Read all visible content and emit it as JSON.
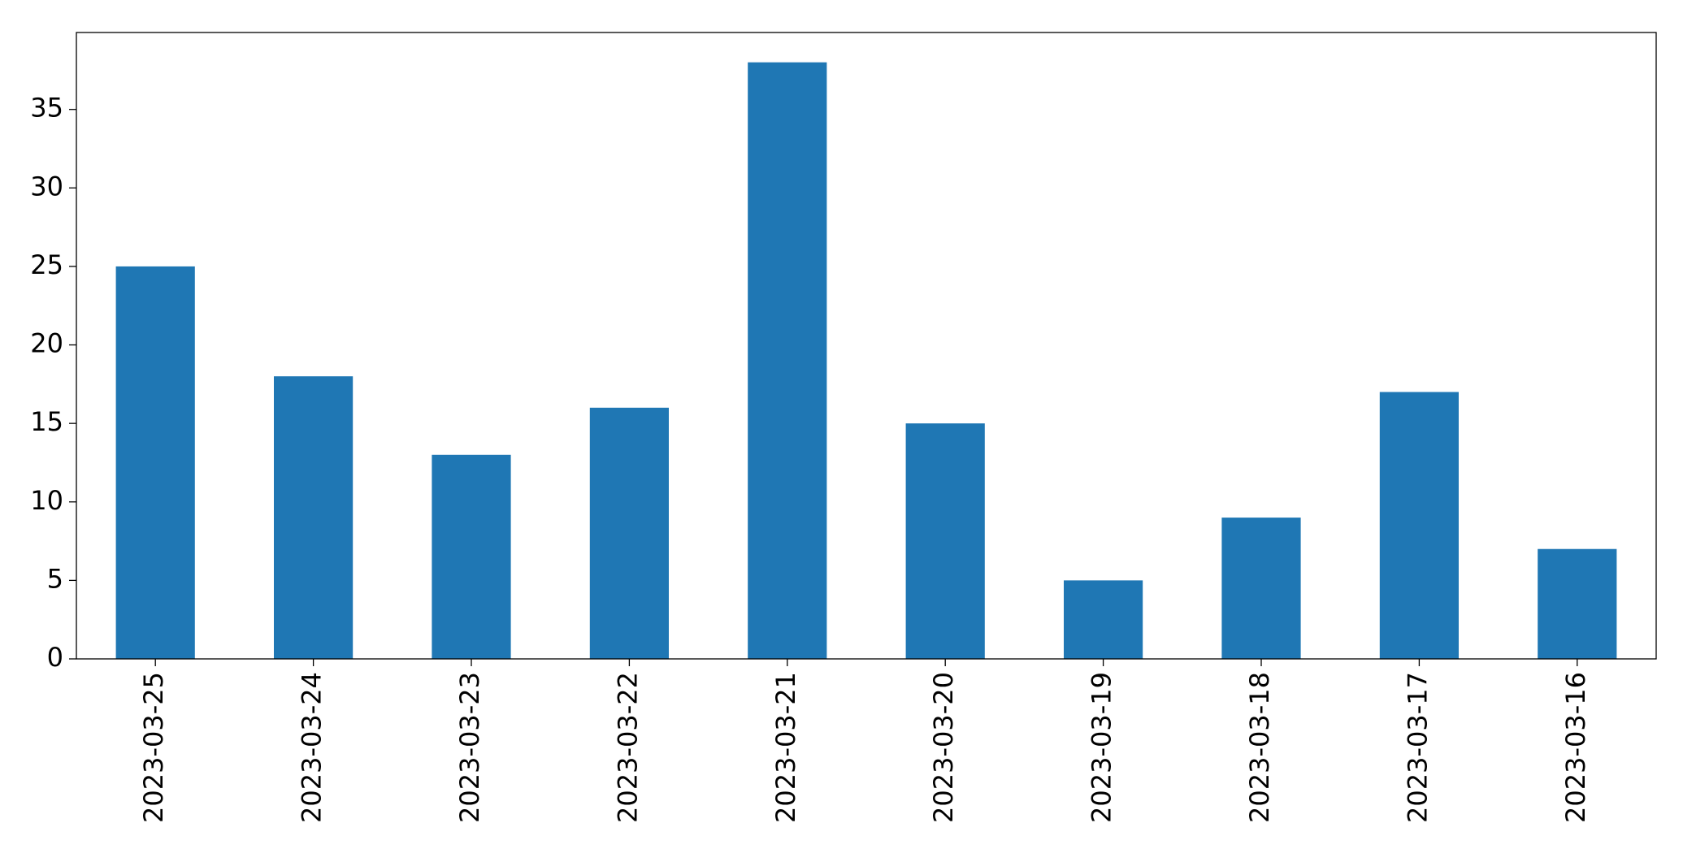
{
  "chart_data": {
    "type": "bar",
    "categories": [
      "2023-03-25",
      "2023-03-24",
      "2023-03-23",
      "2023-03-22",
      "2023-03-21",
      "2023-03-20",
      "2023-03-19",
      "2023-03-18",
      "2023-03-17",
      "2023-03-16"
    ],
    "values": [
      25,
      18,
      13,
      16,
      38,
      15,
      5,
      9,
      17,
      7
    ],
    "color": "#1f77b4",
    "ylim": [
      0,
      39.9
    ],
    "yticks": [
      0,
      5,
      10,
      15,
      20,
      25,
      30,
      35
    ],
    "grid": false
  }
}
